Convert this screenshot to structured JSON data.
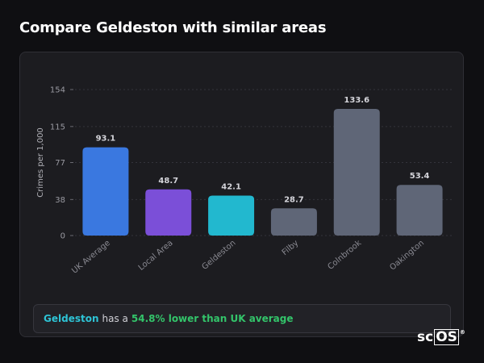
{
  "title": "Compare Geldeston with similar areas",
  "summary": {
    "place": "Geldeston",
    "middle": "has a",
    "difference": "54.8% lower than UK average"
  },
  "logo": {
    "prefix": "sc",
    "boxed": "OS",
    "registered": "®"
  },
  "colors": {
    "uk_average": "#3a78e0",
    "local_area": "#7b4fd8",
    "geldeston": "#22b8cf",
    "other": "#5f6677",
    "place_text": "#2ec4d6",
    "diff_text": "#33c46a"
  },
  "chart_data": {
    "type": "bar",
    "title": "",
    "xlabel": "",
    "ylabel": "Crimes per 1,000",
    "categories": [
      "UK Average",
      "Local Area",
      "Geldeston",
      "Filby",
      "Colnbrook",
      "Oakington"
    ],
    "values": [
      93.1,
      48.7,
      42.1,
      28.7,
      133.6,
      53.4
    ],
    "value_labels": [
      "93.1",
      "48.7",
      "42.1",
      "28.7",
      "133.6",
      "53.4"
    ],
    "bar_colors": [
      "#3a78e0",
      "#7b4fd8",
      "#22b8cf",
      "#5f6677",
      "#5f6677",
      "#5f6677"
    ],
    "yticks": [
      0,
      38,
      77,
      115,
      154
    ],
    "ylim": [
      0,
      154
    ],
    "grid": true,
    "legend": "none"
  }
}
